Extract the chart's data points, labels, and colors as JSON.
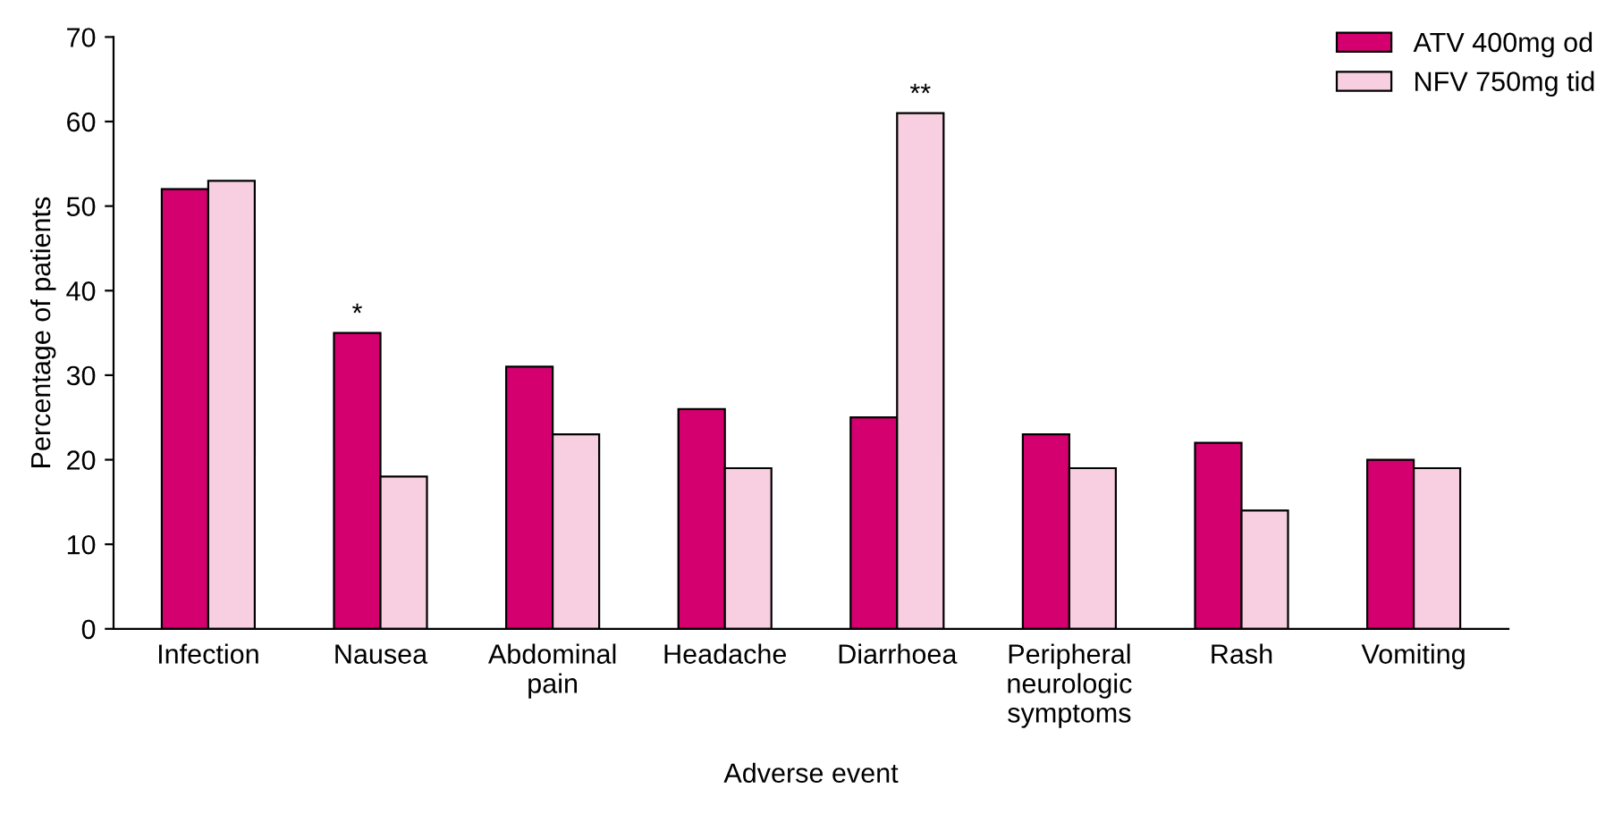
{
  "chart_data": {
    "type": "bar",
    "xlabel": "Adverse event",
    "ylabel": "Percentage of patients",
    "categories": [
      "Infection",
      "Nausea",
      "Abdominal\npain",
      "Headache",
      "Diarrhoea",
      "Peripheral\nneurologic\nsymptoms",
      "Rash",
      "Vomiting"
    ],
    "series": [
      {
        "name": "ATV 400mg od",
        "color": "#d4006f",
        "values": [
          52,
          35,
          31,
          26,
          25,
          23,
          22,
          20
        ]
      },
      {
        "name": "NFV 750mg tid",
        "color": "#f8cfe0",
        "values": [
          53,
          18,
          23,
          19,
          61,
          19,
          14,
          19
        ]
      }
    ],
    "annotations": [
      {
        "text": "*",
        "x": "Nausea",
        "y": 35
      },
      {
        "text": "**",
        "x": "Diarrhoea",
        "y": 61
      }
    ],
    "ylim": [
      0,
      70
    ],
    "yticks": [
      0,
      10,
      20,
      30,
      40,
      50,
      60,
      70
    ],
    "grid": false,
    "legend": "top right"
  }
}
